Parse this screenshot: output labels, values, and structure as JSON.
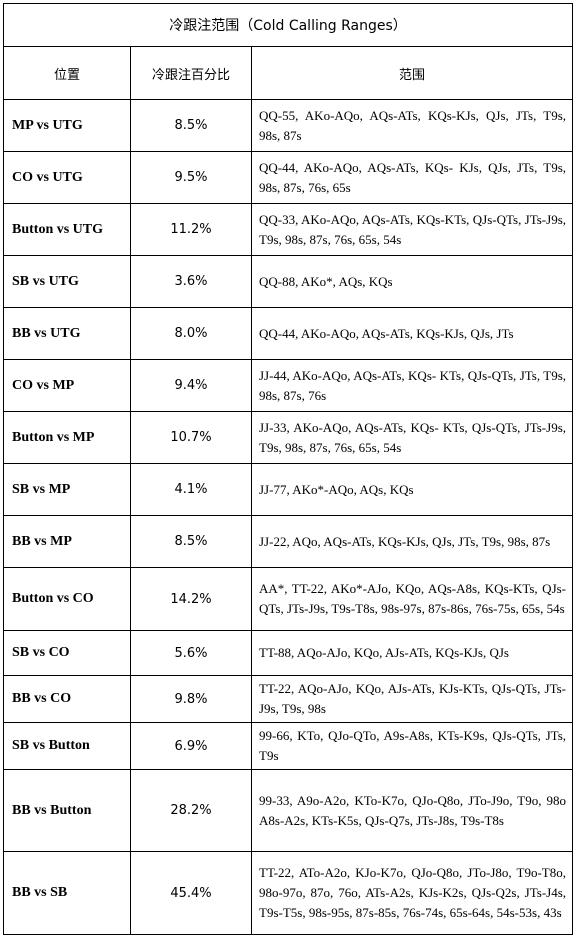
{
  "title": "冷跟注范围（Cold Calling Ranges）",
  "headers": {
    "position": "位置",
    "percent": "冷跟注百分比",
    "range": "范围"
  },
  "rows": [
    {
      "position": "MP vs UTG",
      "percent": "8.5%",
      "range": "QQ-55, AKo-AQo, AQs-ATs, KQs-KJs, QJs, JTs, T9s, 98s, 87s",
      "h": 52
    },
    {
      "position": "CO vs UTG",
      "percent": "9.5%",
      "range": "QQ-44, AKo-AQo, AQs-ATs, KQs- KJs, QJs, JTs, T9s, 98s, 87s, 76s, 65s",
      "h": 52
    },
    {
      "position": "Button vs UTG",
      "percent": "11.2%",
      "range": "QQ-33, AKo-AQo, AQs-ATs, KQs-KTs, QJs-QTs, JTs-J9s, T9s, 98s, 87s, 76s, 65s, 54s",
      "h": 52
    },
    {
      "position": "SB vs UTG",
      "percent": "3.6%",
      "range": "QQ-88, AKo*, AQs, KQs",
      "h": 52
    },
    {
      "position": "BB vs UTG",
      "percent": "8.0%",
      "range": "QQ-44, AKo-AQo, AQs-ATs, KQs-KJs, QJs, JTs",
      "h": 52
    },
    {
      "position": "CO vs MP",
      "percent": "9.4%",
      "range": "JJ-44, AKo-AQo, AQs-ATs, KQs- KTs, QJs-QTs, JTs, T9s, 98s, 87s, 76s",
      "h": 52
    },
    {
      "position": "Button vs MP",
      "percent": "10.7%",
      "range": "JJ-33, AKo-AQo, AQs-ATs, KQs- KTs, QJs-QTs, JTs-J9s, T9s, 98s, 87s, 76s, 65s, 54s",
      "h": 52
    },
    {
      "position": "SB vs MP",
      "percent": "4.1%",
      "range": "JJ-77, AKo*-AQo, AQs, KQs",
      "h": 52
    },
    {
      "position": "BB vs MP",
      "percent": "8.5%",
      "range": "JJ-22, AQo, AQs-ATs, KQs-KJs, QJs, JTs, T9s, 98s, 87s",
      "h": 52
    },
    {
      "position": "Button vs CO",
      "percent": "14.2%",
      "range": "AA*, TT-22, AKo*-AJo, KQo, AQs-A8s, KQs-KTs, QJs-QTs, JTs-J9s, T9s-T8s, 98s-97s, 87s-86s, 76s-75s, 65s, 54s",
      "h": 63
    },
    {
      "position": "SB vs CO",
      "percent": "5.6%",
      "range": "TT-88, AQo-AJo, KQo, AJs-ATs, KQs-KJs, QJs",
      "h": 45
    },
    {
      "position": "BB vs CO",
      "percent": "9.8%",
      "range": "TT-22, AQo-AJo, KQo, AJs-ATs, KJs-KTs, QJs-QTs, JTs-J9s, T9s, 98s",
      "h": 47
    },
    {
      "position": "SB vs Button",
      "percent": "6.9%",
      "range": "99-66, KTo, QJo-QTo, A9s-A8s, KTs-K9s, QJs-QTs, JTs, T9s",
      "h": 47
    },
    {
      "position": "BB vs Button",
      "percent": "28.2%",
      "range": "99-33, A9o-A2o, KTo-K7o, QJo-Q8o, JTo-J9o, T9o, 98o A8s-A2s, KTs-K5s, QJs-Q7s, JTs-J8s, T9s-T8s",
      "h": 82
    },
    {
      "position": "BB vs SB",
      "percent": "45.4%",
      "range": "TT-22, ATo-A2o, KJo-K7o, QJo-Q8o, JTo-J8o, T9o-T8o, 98o-97o, 87o, 76o, ATs-A2s, KJs-K2s, QJs-Q2s, JTs-J4s, T9s-T5s, 98s-95s, 87s-85s, 76s-74s, 65s-64s, 54s-53s, 43s",
      "h": 83
    }
  ]
}
